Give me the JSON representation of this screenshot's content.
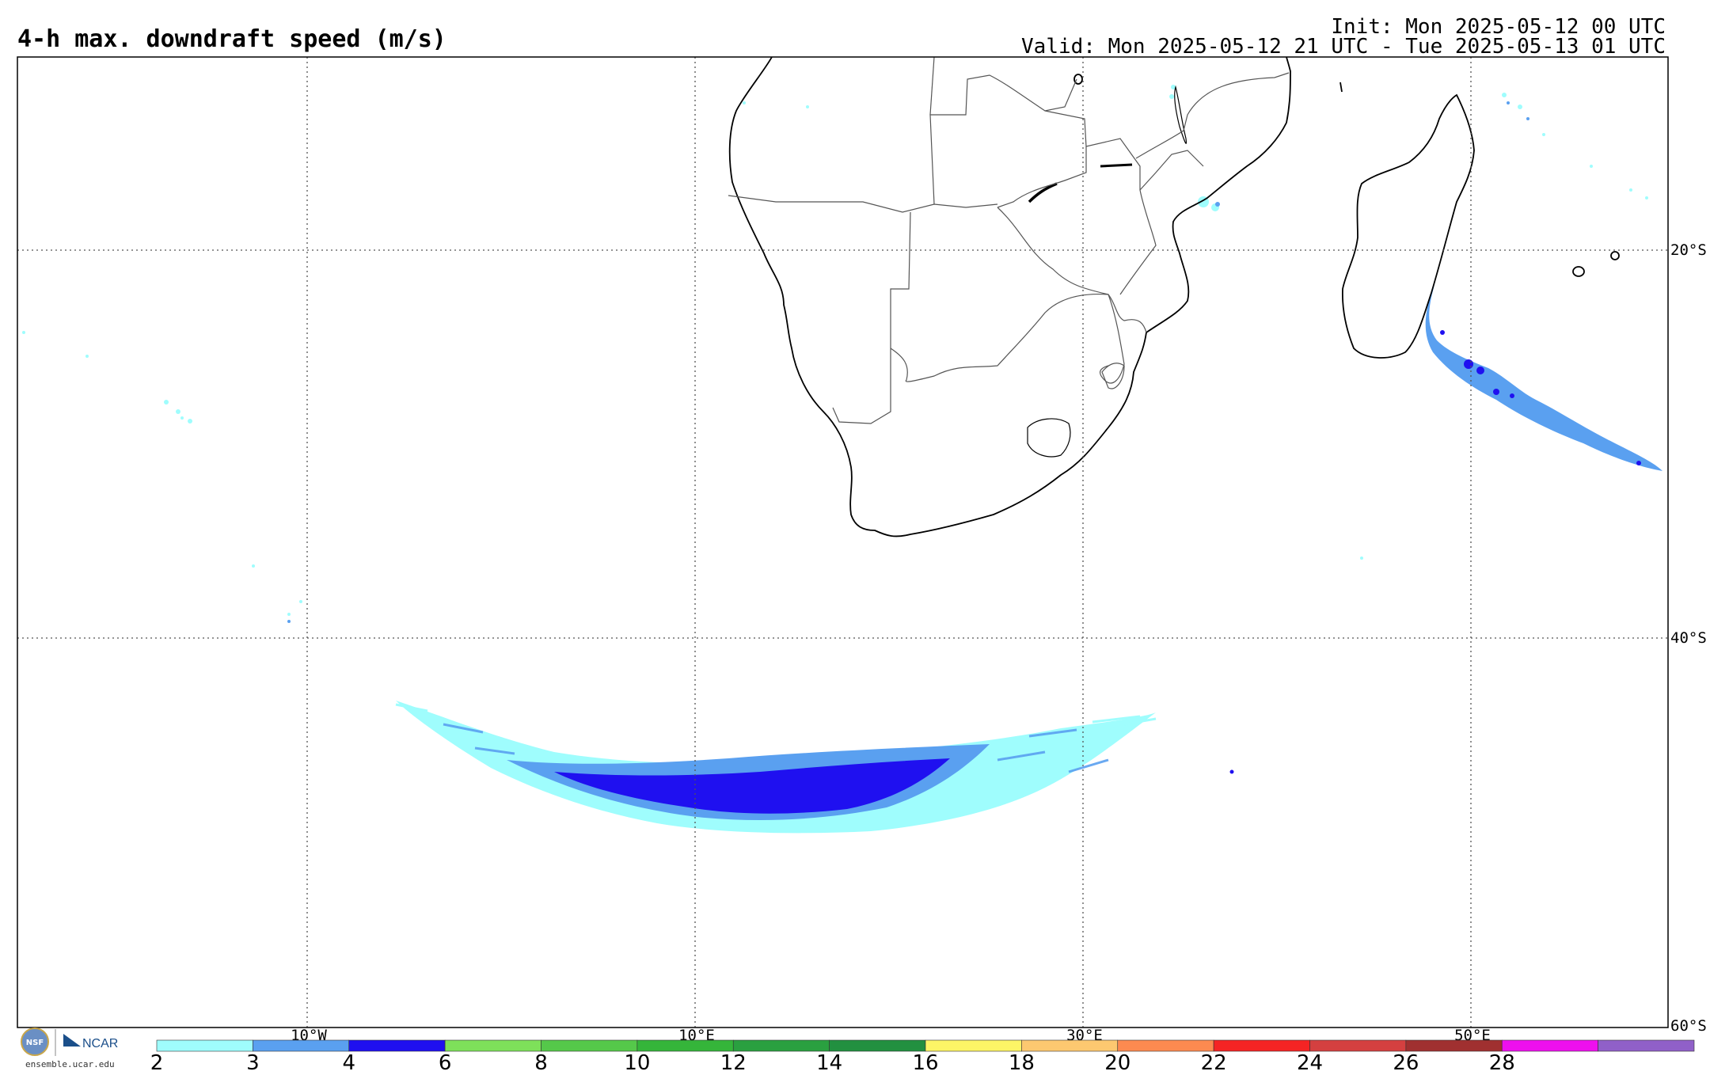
{
  "header": {
    "title": "4-h max. downdraft speed (m/s)",
    "init": "Init: Mon 2025-05-12 00 UTC",
    "valid": "Valid: Mon 2025-05-12 21 UTC - Tue 2025-05-13 01 UTC"
  },
  "map": {
    "lat_labels": [
      "20°S",
      "40°S",
      "60°S"
    ],
    "lon_labels": [
      "10°W",
      "10°E",
      "30°E",
      "50°E"
    ],
    "grid": "dotted"
  },
  "colorbar": {
    "ticks": [
      "2",
      "3",
      "4",
      "6",
      "8",
      "10",
      "12",
      "14",
      "16",
      "18",
      "20",
      "22",
      "24",
      "26",
      "28"
    ],
    "colors": [
      "#9ffdfd",
      "#5aa0f0",
      "#1f10f0",
      "#7ee05a",
      "#55c84a",
      "#35b53a",
      "#2aa040",
      "#229040",
      "#fdf566",
      "#fdc870",
      "#fd8a50",
      "#f52424",
      "#d44040",
      "#a03030",
      "#ee10ee",
      "#9060c8"
    ]
  },
  "logos": {
    "nsf": "NSF",
    "ncar": "NCAR",
    "credit": "ensemble.ucar.edu"
  }
}
